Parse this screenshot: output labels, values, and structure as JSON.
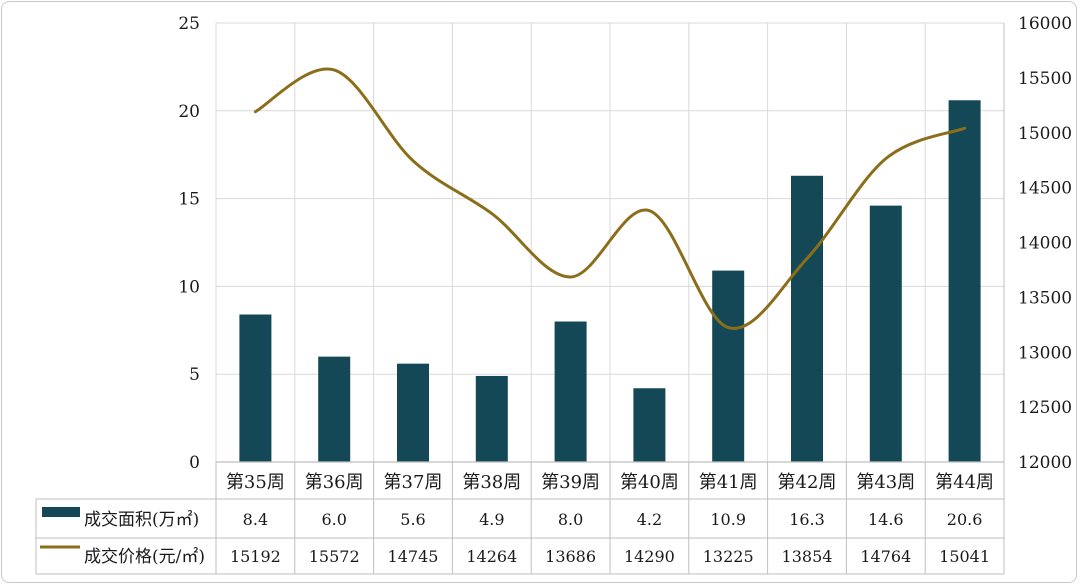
{
  "chart_data": {
    "type": "bar",
    "categories": [
      "第35周",
      "第36周",
      "第37周",
      "第38周",
      "第39周",
      "第40周",
      "第41周",
      "第42周",
      "第43周",
      "第44周"
    ],
    "series": [
      {
        "name": "成交面积(万㎡)",
        "type": "bar",
        "axis": "left",
        "color": "#154856",
        "values": [
          8.4,
          6.0,
          5.6,
          4.9,
          8.0,
          4.2,
          10.9,
          16.3,
          14.6,
          20.6
        ],
        "labels": [
          "8.4",
          "6.0",
          "5.6",
          "4.9",
          "8.0",
          "4.2",
          "10.9",
          "16.3",
          "14.6",
          "20.6"
        ]
      },
      {
        "name": "成交价格(元/㎡)",
        "type": "line",
        "axis": "right",
        "color": "#8b6e1a",
        "values": [
          15192,
          15572,
          14745,
          14264,
          13686,
          14290,
          13225,
          13854,
          14764,
          15041
        ],
        "labels": [
          "15192",
          "15572",
          "14745",
          "14264",
          "13686",
          "14290",
          "13225",
          "13854",
          "14764",
          "15041"
        ]
      }
    ],
    "y_left": {
      "min": 0,
      "max": 25,
      "ticks": [
        "0",
        "5",
        "10",
        "15",
        "20",
        "25"
      ]
    },
    "y_right": {
      "min": 12000,
      "max": 16000,
      "ticks": [
        "12000",
        "12500",
        "13000",
        "13500",
        "14000",
        "14500",
        "15000",
        "15500",
        "16000"
      ]
    },
    "grid": true,
    "legend": "data-table"
  }
}
